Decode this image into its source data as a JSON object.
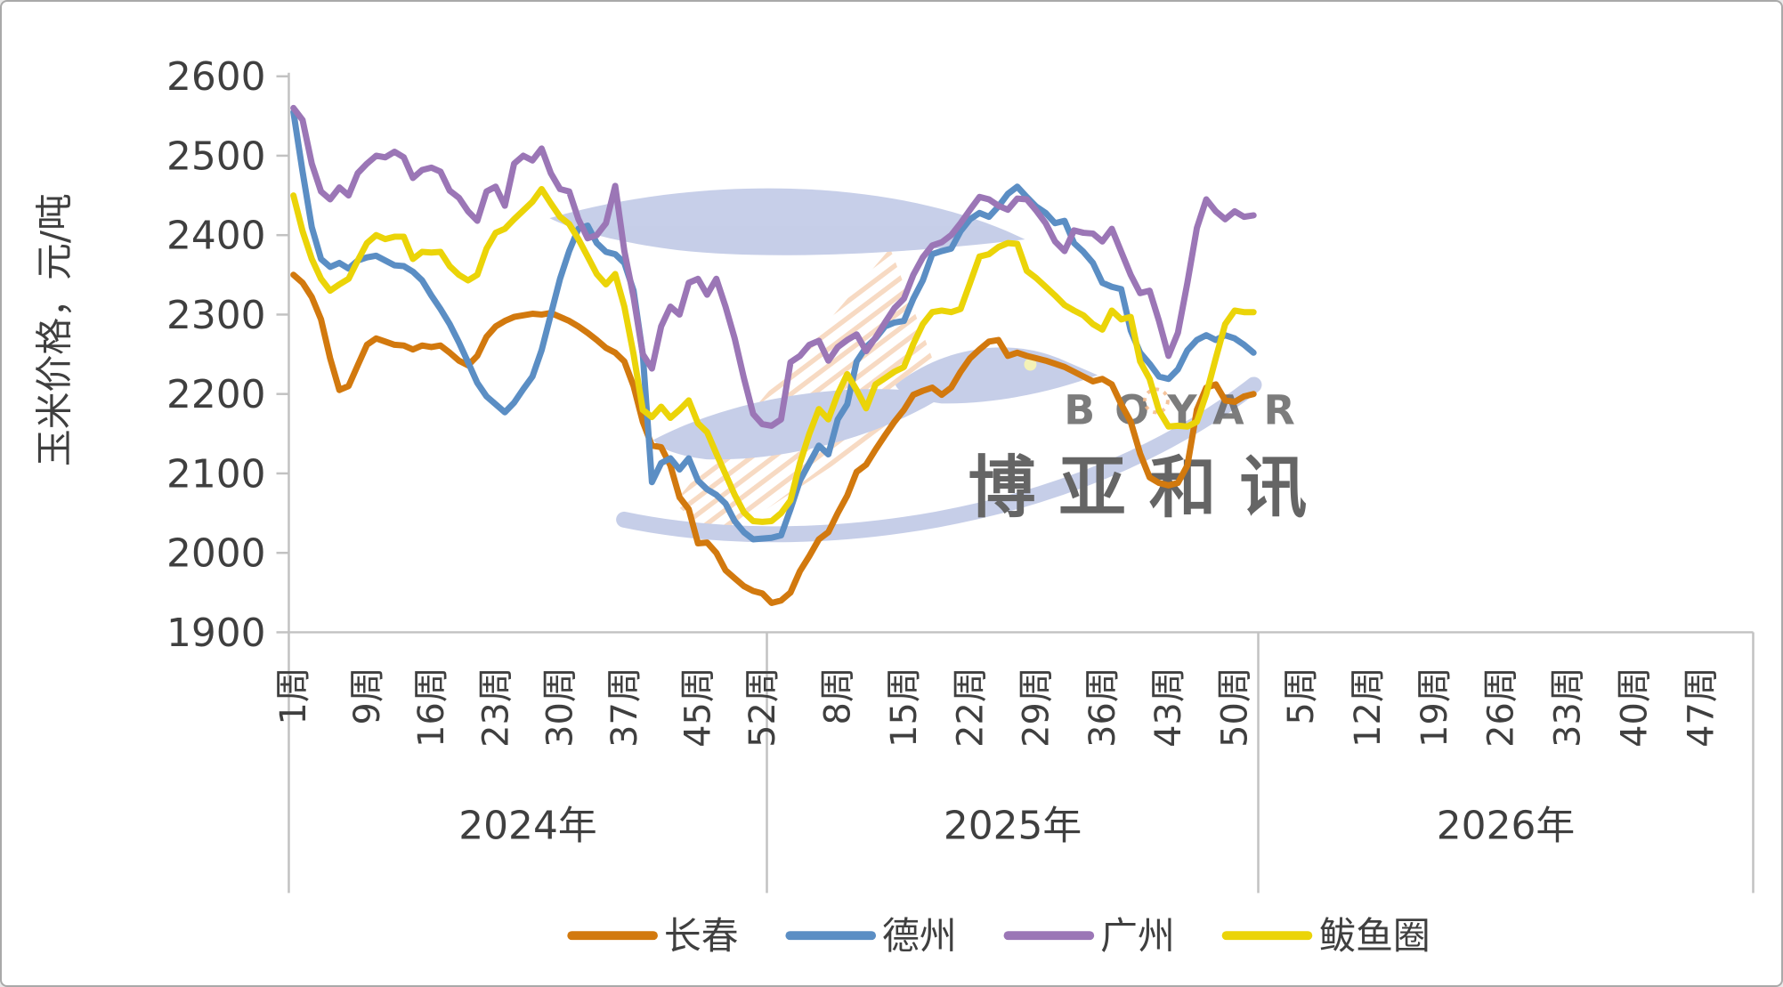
{
  "y_axis": {
    "title": "玉米价格，元/吨",
    "ticks": [
      2600,
      2500,
      2400,
      2300,
      2200,
      2100,
      2000,
      1900
    ]
  },
  "x_axis": {
    "years": [
      {
        "label": "2024年",
        "ticks": [
          {
            "label": "1周",
            "week": 1
          },
          {
            "label": "9周",
            "week": 9
          },
          {
            "label": "16周",
            "week": 16
          },
          {
            "label": "23周",
            "week": 23
          },
          {
            "label": "30周",
            "week": 30
          },
          {
            "label": "37周",
            "week": 37
          },
          {
            "label": "45周",
            "week": 45
          },
          {
            "label": "52周",
            "week": 52
          }
        ]
      },
      {
        "label": "2025年",
        "ticks": [
          {
            "label": "8周",
            "week": 8
          },
          {
            "label": "15周",
            "week": 15
          },
          {
            "label": "22周",
            "week": 22
          },
          {
            "label": "29周",
            "week": 29
          },
          {
            "label": "36周",
            "week": 36
          },
          {
            "label": "43周",
            "week": 43
          },
          {
            "label": "50周",
            "week": 50
          }
        ]
      },
      {
        "label": "2026年",
        "ticks": [
          {
            "label": "5周",
            "week": 5
          },
          {
            "label": "12周",
            "week": 12
          },
          {
            "label": "19周",
            "week": 19
          },
          {
            "label": "26周",
            "week": 26
          },
          {
            "label": "33周",
            "week": 33
          },
          {
            "label": "40周",
            "week": 40
          },
          {
            "label": "47周",
            "week": 47
          }
        ]
      }
    ]
  },
  "legend": [
    {
      "label": "长春",
      "color": "#D2790E"
    },
    {
      "label": "德州",
      "color": "#5B8EC4"
    },
    {
      "label": "广州",
      "color": "#9B76B6"
    },
    {
      "label": "鲅鱼圈",
      "color": "#EBD408"
    }
  ],
  "watermark": {
    "latin": "BOYAR",
    "cjk": "博亚和讯"
  },
  "chart_data": {
    "type": "line",
    "title": "",
    "xlabel": "",
    "ylabel": "玉米价格，元/吨",
    "ylim": [
      1900,
      2600
    ],
    "grid": false,
    "legend_position": "bottom",
    "x_structure": "weekly; 52 weeks per year section; sections 2024年, 2025年, 2026年; data covers 2024 W1 through 2025 W52; 2026 section has no data",
    "weeks_per_year": 52,
    "series": [
      {
        "name": "长春",
        "color": "#D2790E",
        "start": "2024-W1",
        "values": [
          2350,
          2340,
          2322,
          2294,
          2245,
          2205,
          2210,
          2236,
          2262,
          2270,
          2266,
          2262,
          2261,
          2256,
          2261,
          2259,
          2261,
          2252,
          2242,
          2236,
          2248,
          2272,
          2285,
          2292,
          2297,
          2299,
          2301,
          2300,
          2302,
          2297,
          2292,
          2285,
          2277,
          2268,
          2258,
          2252,
          2241,
          2210,
          2165,
          2135,
          2133,
          2110,
          2070,
          2055,
          2012,
          2013,
          2000,
          1978,
          1968,
          1958,
          1952,
          1949,
          1937,
          1940,
          1950,
          1977,
          1996,
          2017,
          2026,
          2050,
          2072,
          2102,
          2111,
          2130,
          2148,
          2165,
          2180,
          2199,
          2204,
          2208,
          2199,
          2208,
          2228,
          2245,
          2256,
          2266,
          2268,
          2248,
          2252,
          2248,
          2245,
          2242,
          2238,
          2234,
          2228,
          2222,
          2216,
          2219,
          2212,
          2187,
          2165,
          2125,
          2095,
          2088,
          2085,
          2088,
          2110,
          2180,
          2208,
          2212,
          2192,
          2190,
          2197,
          2200
        ]
      },
      {
        "name": "德州",
        "color": "#5B8EC4",
        "start": "2024-W1",
        "values": [
          2555,
          2480,
          2410,
          2370,
          2360,
          2365,
          2358,
          2368,
          2372,
          2374,
          2368,
          2362,
          2361,
          2354,
          2343,
          2324,
          2307,
          2288,
          2265,
          2240,
          2214,
          2197,
          2187,
          2177,
          2189,
          2206,
          2222,
          2255,
          2300,
          2345,
          2380,
          2408,
          2412,
          2390,
          2379,
          2376,
          2365,
          2330,
          2250,
          2089,
          2113,
          2119,
          2105,
          2119,
          2091,
          2080,
          2073,
          2062,
          2040,
          2026,
          2017,
          2018,
          2019,
          2022,
          2055,
          2091,
          2113,
          2135,
          2124,
          2168,
          2187,
          2241,
          2259,
          2270,
          2285,
          2290,
          2292,
          2320,
          2343,
          2376,
          2380,
          2383,
          2405,
          2420,
          2428,
          2423,
          2436,
          2452,
          2461,
          2448,
          2436,
          2428,
          2415,
          2418,
          2390,
          2379,
          2365,
          2340,
          2335,
          2332,
          2280,
          2252,
          2238,
          2222,
          2219,
          2231,
          2255,
          2268,
          2274,
          2268,
          2274,
          2270,
          2262,
          2252
        ]
      },
      {
        "name": "广州",
        "color": "#9B76B6",
        "start": "2024-W1",
        "values": [
          2560,
          2545,
          2490,
          2455,
          2445,
          2460,
          2450,
          2478,
          2490,
          2500,
          2498,
          2505,
          2498,
          2472,
          2482,
          2485,
          2480,
          2456,
          2447,
          2430,
          2418,
          2455,
          2461,
          2437,
          2490,
          2500,
          2494,
          2509,
          2478,
          2458,
          2455,
          2420,
          2396,
          2400,
          2415,
          2462,
          2380,
          2322,
          2250,
          2232,
          2285,
          2310,
          2300,
          2340,
          2345,
          2325,
          2345,
          2310,
          2270,
          2220,
          2175,
          2162,
          2160,
          2168,
          2240,
          2248,
          2262,
          2267,
          2242,
          2259,
          2268,
          2275,
          2254,
          2271,
          2290,
          2308,
          2320,
          2350,
          2372,
          2387,
          2391,
          2400,
          2415,
          2432,
          2448,
          2445,
          2437,
          2432,
          2446,
          2445,
          2431,
          2415,
          2392,
          2380,
          2406,
          2403,
          2402,
          2392,
          2408,
          2379,
          2350,
          2327,
          2330,
          2292,
          2248,
          2277,
          2340,
          2409,
          2445,
          2430,
          2420,
          2430,
          2423,
          2425
        ]
      },
      {
        "name": "鲅鱼圈",
        "color": "#EBD408",
        "start": "2024-W1",
        "values": [
          2450,
          2405,
          2370,
          2345,
          2330,
          2338,
          2345,
          2368,
          2390,
          2400,
          2395,
          2398,
          2398,
          2370,
          2379,
          2378,
          2379,
          2361,
          2350,
          2343,
          2350,
          2383,
          2403,
          2408,
          2420,
          2431,
          2442,
          2458,
          2440,
          2423,
          2414,
          2395,
          2373,
          2351,
          2338,
          2351,
          2310,
          2250,
          2180,
          2171,
          2184,
          2170,
          2180,
          2192,
          2163,
          2152,
          2125,
          2099,
          2073,
          2051,
          2040,
          2039,
          2040,
          2050,
          2066,
          2113,
          2150,
          2181,
          2168,
          2200,
          2225,
          2205,
          2182,
          2212,
          2220,
          2228,
          2234,
          2263,
          2288,
          2303,
          2305,
          2303,
          2307,
          2340,
          2373,
          2376,
          2385,
          2390,
          2389,
          2355,
          2346,
          2335,
          2324,
          2312,
          2305,
          2299,
          2288,
          2281,
          2305,
          2294,
          2297,
          2241,
          2219,
          2179,
          2159,
          2160,
          2159,
          2165,
          2200,
          2245,
          2288,
          2305,
          2303,
          2303
        ]
      }
    ]
  }
}
